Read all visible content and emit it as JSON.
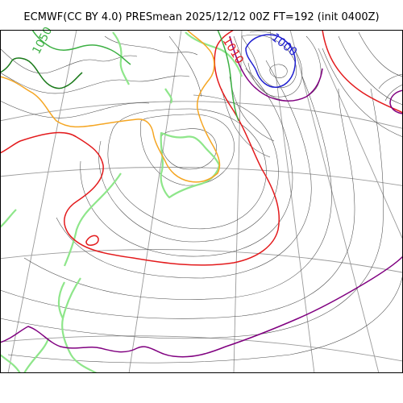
{
  "title": "ECMWF(CC BY 4.0) PRESmean 2025/12/12 00Z FT=192 (init 0400Z)",
  "isobar_labels": [
    "1050",
    "1010",
    "1000"
  ],
  "colors": {
    "isobar_1000": "#1f1fd0",
    "isobar_red": "#e31a1c",
    "isobar_orange": "#f5a623",
    "isobar_purple": "#800080",
    "isobar_dark_green": "#1a7a1a",
    "isobar_green": "#3cb043",
    "coastline": "#8ee68a",
    "thin_isobar": "#4a4a4a",
    "graticule": "#9a9a9a"
  }
}
